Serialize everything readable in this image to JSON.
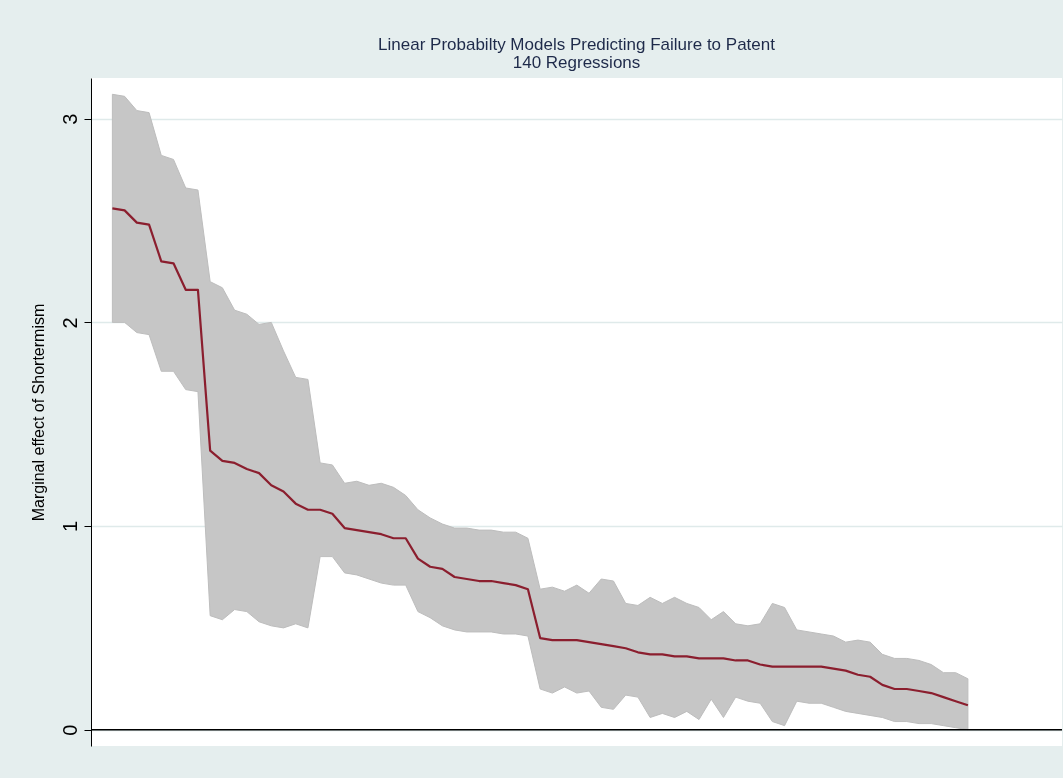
{
  "chart_data": {
    "type": "line",
    "title": "Linear Probabilty Models Predicting Failure to Patent",
    "subtitle": "140 Regressions",
    "ylabel": "Marginal effect of Shortermism",
    "categories": [
      null,
      null,
      null,
      null,
      null,
      null,
      null,
      null,
      null,
      null,
      null,
      null,
      null,
      null,
      null,
      null,
      null,
      null,
      null,
      null,
      null,
      null,
      null,
      null,
      null,
      null,
      null,
      null,
      null,
      null,
      null,
      null,
      null,
      null,
      null,
      null,
      null,
      null,
      null,
      null,
      null,
      null,
      null,
      null,
      null,
      null,
      null,
      null,
      null,
      null,
      null,
      null,
      null,
      null,
      null,
      null,
      null,
      null,
      null,
      null,
      null,
      null,
      null,
      null,
      null,
      null,
      null,
      null,
      null,
      null,
      null
    ],
    "series": [
      {
        "color": "#8b1e2e",
        "values": [
          2.56,
          2.55,
          2.49,
          2.48,
          2.3,
          2.29,
          2.16,
          2.16,
          1.37,
          1.32,
          1.31,
          1.28,
          1.26,
          1.2,
          1.17,
          1.11,
          1.08,
          1.08,
          1.06,
          0.99,
          0.98,
          0.97,
          0.96,
          0.94,
          0.94,
          0.84,
          0.8,
          0.79,
          0.75,
          0.74,
          0.73,
          0.73,
          0.72,
          0.71,
          0.69,
          0.45,
          0.44,
          0.44,
          0.44,
          0.43,
          0.42,
          0.41,
          0.4,
          0.38,
          0.37,
          0.37,
          0.36,
          0.36,
          0.35,
          0.35,
          0.35,
          0.34,
          0.34,
          0.32,
          0.31,
          0.31,
          0.31,
          0.31,
          0.31,
          0.3,
          0.29,
          0.27,
          0.26,
          0.22,
          0.2,
          0.2,
          0.19,
          0.18,
          0.16,
          0.14,
          0.12
        ],
        "upper": [
          3.12,
          3.11,
          3.04,
          3.03,
          2.82,
          2.8,
          2.66,
          2.65,
          2.2,
          2.17,
          2.06,
          2.04,
          1.99,
          2.0,
          1.86,
          1.73,
          1.72,
          1.31,
          1.3,
          1.21,
          1.22,
          1.2,
          1.21,
          1.19,
          1.15,
          1.08,
          1.04,
          1.01,
          0.99,
          0.99,
          0.98,
          0.98,
          0.97,
          0.97,
          0.94,
          0.69,
          0.7,
          0.68,
          0.71,
          0.67,
          0.74,
          0.73,
          0.62,
          0.61,
          0.65,
          0.62,
          0.65,
          0.62,
          0.6,
          0.54,
          0.58,
          0.52,
          0.51,
          0.52,
          0.62,
          0.6,
          0.49,
          0.48,
          0.47,
          0.46,
          0.43,
          0.44,
          0.43,
          0.37,
          0.35,
          0.35,
          0.34,
          0.32,
          0.28,
          0.28,
          0.25
        ],
        "lower": [
          2.0,
          2.0,
          1.95,
          1.94,
          1.76,
          1.76,
          1.67,
          1.66,
          0.56,
          0.54,
          0.59,
          0.58,
          0.53,
          0.51,
          0.5,
          0.52,
          0.5,
          0.85,
          0.85,
          0.77,
          0.76,
          0.74,
          0.72,
          0.71,
          0.71,
          0.58,
          0.55,
          0.51,
          0.49,
          0.48,
          0.48,
          0.48,
          0.47,
          0.47,
          0.46,
          0.2,
          0.18,
          0.21,
          0.18,
          0.19,
          0.11,
          0.1,
          0.17,
          0.16,
          0.06,
          0.08,
          0.06,
          0.09,
          0.05,
          0.15,
          0.06,
          0.16,
          0.14,
          0.13,
          0.04,
          0.02,
          0.14,
          0.13,
          0.13,
          0.11,
          0.09,
          0.08,
          0.07,
          0.06,
          0.04,
          0.04,
          0.03,
          0.03,
          0.02,
          0.01,
          0.0
        ]
      }
    ],
    "ylim": [
      -0.08,
      3.2
    ],
    "yticks": [
      0,
      1,
      2,
      3
    ],
    "grid": "y",
    "ref_lines": [
      {
        "axis": "y",
        "value": 0,
        "color": "#000000"
      }
    ]
  }
}
